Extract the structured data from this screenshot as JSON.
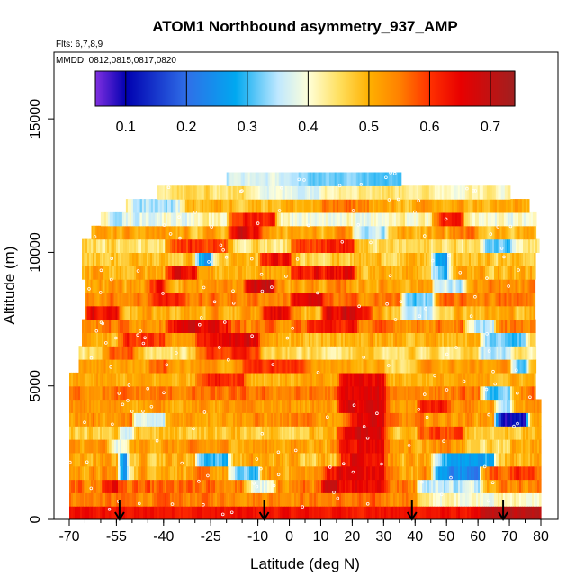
{
  "chart_data": {
    "type": "heatmap",
    "title": "ATOM1 Northbound asymmetry_937_AMP",
    "subtitle": "Flts: 6,7,8,9",
    "annotation": "MMDD: 0812,0815,0817,0820",
    "xlabel": "Latitude (deg N)",
    "ylabel": "Altitude (m)",
    "xlim": [
      -70,
      80
    ],
    "ylim": [
      0,
      17500
    ],
    "x_ticks": [
      -70,
      -55,
      -40,
      -25,
      -10,
      0,
      10,
      20,
      30,
      40,
      50,
      60,
      70,
      80
    ],
    "x_tick_labels": [
      "-70",
      "-55",
      "-40",
      "-25",
      "-10",
      "0",
      "10",
      "20",
      "30",
      "40",
      "50",
      "60",
      "70",
      "80"
    ],
    "y_ticks": [
      0,
      5000,
      10000,
      15000
    ],
    "y_tick_labels": [
      "0",
      "5000",
      "10000",
      "15000"
    ],
    "colorbar": {
      "range": [
        0.05,
        0.74
      ],
      "ticks": [
        0.1,
        0.2,
        0.3,
        0.4,
        0.5,
        0.6,
        0.7
      ],
      "tick_labels": [
        "0.1",
        "0.2",
        "0.3",
        "0.4",
        "0.5",
        "0.6",
        "0.7"
      ],
      "stops": [
        {
          "value": 0.05,
          "color": "#7f2fe0"
        },
        {
          "value": 0.1,
          "color": "#0000b0"
        },
        {
          "value": 0.2,
          "color": "#2f6fe8"
        },
        {
          "value": 0.28,
          "color": "#00a8f0"
        },
        {
          "value": 0.35,
          "color": "#bfe8ff"
        },
        {
          "value": 0.4,
          "color": "#ffffd8"
        },
        {
          "value": 0.45,
          "color": "#ffe060"
        },
        {
          "value": 0.5,
          "color": "#ffb000"
        },
        {
          "value": 0.55,
          "color": "#ff8000"
        },
        {
          "value": 0.6,
          "color": "#ff3000"
        },
        {
          "value": 0.65,
          "color": "#e80000"
        },
        {
          "value": 0.74,
          "color": "#a02020"
        }
      ]
    },
    "arrows_latitude": [
      -54,
      -8,
      39,
      68
    ],
    "rows": [
      {
        "alt": [
          0,
          500
        ],
        "x": [
          -70,
          80
        ],
        "base": 0.63,
        "var": 0.04,
        "features": [
          [
            60,
            80,
            0.7
          ]
        ]
      },
      {
        "alt": [
          500,
          1000
        ],
        "x": [
          -70,
          80
        ],
        "base": 0.55,
        "var": 0.06,
        "features": [
          [
            40,
            80,
            0.41
          ]
        ]
      },
      {
        "alt": [
          1000,
          1500
        ],
        "x": [
          -70,
          80
        ],
        "base": 0.55,
        "var": 0.08,
        "features": [
          [
            -60,
            -55,
            0.65
          ],
          [
            -15,
            -5,
            0.38
          ],
          [
            10,
            30,
            0.66
          ],
          [
            40,
            60,
            0.36
          ]
        ]
      },
      {
        "alt": [
          1500,
          2000
        ],
        "x": [
          -70,
          80
        ],
        "base": 0.52,
        "var": 0.08,
        "features": [
          [
            -55,
            -52,
            0.2
          ],
          [
            -20,
            -10,
            0.3
          ],
          [
            10,
            30,
            0.65
          ],
          [
            45,
            60,
            0.25
          ],
          [
            60,
            80,
            0.58
          ]
        ]
      },
      {
        "alt": [
          2000,
          2500
        ],
        "x": [
          -70,
          80
        ],
        "base": 0.5,
        "var": 0.08,
        "features": [
          [
            -55,
            -52,
            0.25
          ],
          [
            -30,
            -20,
            0.3
          ],
          [
            15,
            30,
            0.66
          ],
          [
            45,
            65,
            0.28
          ]
        ]
      },
      {
        "alt": [
          2500,
          3000
        ],
        "x": [
          -70,
          80
        ],
        "base": 0.52,
        "var": 0.07,
        "features": [
          [
            -58,
            -52,
            0.38
          ],
          [
            15,
            30,
            0.66
          ],
          [
            55,
            70,
            0.45
          ]
        ]
      },
      {
        "alt": [
          3000,
          3500
        ],
        "x": [
          -70,
          80
        ],
        "base": 0.48,
        "var": 0.07,
        "features": [
          [
            -55,
            -50,
            0.33
          ],
          [
            15,
            30,
            0.66
          ],
          [
            40,
            55,
            0.58
          ]
        ]
      },
      {
        "alt": [
          3500,
          4000
        ],
        "x": [
          -70,
          80
        ],
        "base": 0.53,
        "var": 0.07,
        "features": [
          [
            -50,
            -40,
            0.35
          ],
          [
            18,
            30,
            0.66
          ],
          [
            65,
            75,
            0.1
          ]
        ]
      },
      {
        "alt": [
          4000,
          4500
        ],
        "x": [
          -70,
          80
        ],
        "base": 0.52,
        "var": 0.06,
        "features": [
          [
            15,
            30,
            0.66
          ],
          [
            40,
            50,
            0.62
          ],
          [
            65,
            70,
            0.3
          ]
        ]
      },
      {
        "alt": [
          4500,
          5000
        ],
        "x": [
          -70,
          78
        ],
        "base": 0.55,
        "var": 0.06,
        "features": [
          [
            15,
            30,
            0.65
          ],
          [
            60,
            70,
            0.3
          ]
        ]
      },
      {
        "alt": [
          5000,
          5500
        ],
        "x": [
          -70,
          78
        ],
        "base": 0.5,
        "var": 0.06,
        "features": [
          [
            -30,
            -15,
            0.62
          ],
          [
            15,
            30,
            0.65
          ]
        ]
      },
      {
        "alt": [
          5500,
          6000
        ],
        "x": [
          -67,
          78
        ],
        "base": 0.52,
        "var": 0.06,
        "features": [
          [
            -45,
            -40,
            0.6
          ],
          [
            -15,
            5,
            0.6
          ],
          [
            30,
            40,
            0.45
          ],
          [
            70,
            75,
            0.3
          ]
        ]
      },
      {
        "alt": [
          6000,
          6500
        ],
        "x": [
          -67,
          78
        ],
        "base": 0.45,
        "var": 0.07,
        "features": [
          [
            -60,
            -50,
            0.58
          ],
          [
            -30,
            -10,
            0.6
          ],
          [
            60,
            70,
            0.35
          ]
        ]
      },
      {
        "alt": [
          6500,
          7000
        ],
        "x": [
          -66,
          78
        ],
        "base": 0.5,
        "var": 0.07,
        "features": [
          [
            -55,
            -40,
            0.6
          ],
          [
            -30,
            -10,
            0.65
          ],
          [
            60,
            75,
            0.32
          ]
        ]
      },
      {
        "alt": [
          7000,
          7500
        ],
        "x": [
          -66,
          78
        ],
        "base": 0.55,
        "var": 0.07,
        "features": [
          [
            -40,
            -20,
            0.65
          ],
          [
            5,
            20,
            0.62
          ],
          [
            55,
            65,
            0.35
          ]
        ]
      },
      {
        "alt": [
          7500,
          8000
        ],
        "x": [
          -65,
          78
        ],
        "base": 0.5,
        "var": 0.08,
        "features": [
          [
            -65,
            -55,
            0.65
          ],
          [
            -10,
            0,
            0.65
          ],
          [
            10,
            25,
            0.66
          ],
          [
            35,
            45,
            0.35
          ]
        ]
      },
      {
        "alt": [
          8000,
          8500
        ],
        "x": [
          -65,
          78
        ],
        "base": 0.55,
        "var": 0.07,
        "features": [
          [
            -45,
            -35,
            0.62
          ],
          [
            0,
            10,
            0.66
          ],
          [
            35,
            45,
            0.32
          ]
        ]
      },
      {
        "alt": [
          8500,
          9000
        ],
        "x": [
          -65,
          78
        ],
        "base": 0.52,
        "var": 0.08,
        "features": [
          [
            -45,
            -40,
            0.62
          ],
          [
            -15,
            -5,
            0.68
          ],
          [
            45,
            55,
            0.35
          ]
        ]
      },
      {
        "alt": [
          9000,
          9500
        ],
        "x": [
          -66,
          78
        ],
        "base": 0.5,
        "var": 0.08,
        "features": [
          [
            -40,
            -30,
            0.66
          ],
          [
            0,
            20,
            0.64
          ],
          [
            45,
            50,
            0.3
          ]
        ]
      },
      {
        "alt": [
          9500,
          10000
        ],
        "x": [
          -66,
          78
        ],
        "base": 0.48,
        "var": 0.07,
        "features": [
          [
            -30,
            -25,
            0.25
          ],
          [
            -10,
            0,
            0.62
          ],
          [
            45,
            50,
            0.25
          ]
        ]
      },
      {
        "alt": [
          10000,
          10500
        ],
        "x": [
          -66,
          79
        ],
        "base": 0.45,
        "var": 0.07,
        "features": [
          [
            -40,
            -20,
            0.6
          ],
          [
            0,
            20,
            0.62
          ],
          [
            60,
            70,
            0.32
          ]
        ]
      },
      {
        "alt": [
          10500,
          11000
        ],
        "x": [
          -63,
          78
        ],
        "base": 0.5,
        "var": 0.08,
        "features": [
          [
            -20,
            -10,
            0.66
          ],
          [
            20,
            30,
            0.35
          ],
          [
            50,
            60,
            0.55
          ]
        ]
      },
      {
        "alt": [
          11000,
          11500
        ],
        "x": [
          -60,
          78
        ],
        "base": 0.4,
        "var": 0.07,
        "features": [
          [
            -60,
            -45,
            0.38
          ],
          [
            -20,
            -5,
            0.62
          ],
          [
            45,
            55,
            0.6
          ]
        ]
      },
      {
        "alt": [
          11500,
          12000
        ],
        "x": [
          -52,
          76
        ],
        "base": 0.5,
        "var": 0.07,
        "features": [
          [
            -52,
            -35,
            0.35
          ],
          [
            10,
            25,
            0.55
          ]
        ]
      },
      {
        "alt": [
          12000,
          12500
        ],
        "x": [
          -42,
          70
        ],
        "base": 0.45,
        "var": 0.06,
        "features": [
          [
            -10,
            10,
            0.38
          ],
          [
            40,
            70,
            0.42
          ]
        ]
      },
      {
        "alt": [
          12500,
          13000
        ],
        "x": [
          -20,
          35
        ],
        "base": 0.32,
        "var": 0.04,
        "features": [
          [
            -20,
            0,
            0.37
          ]
        ]
      }
    ]
  }
}
